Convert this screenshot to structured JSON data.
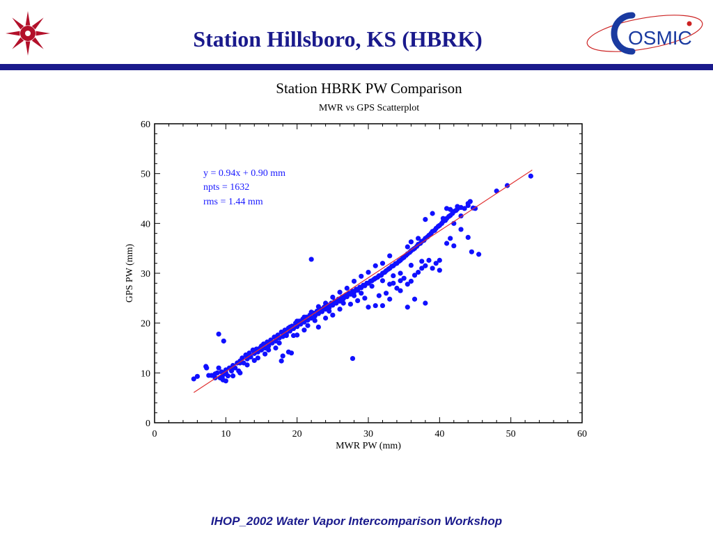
{
  "slide": {
    "title": "Station Hillsboro, KS (HBRK)",
    "footer": "IHOP_2002 Water Vapor Intercomparison Workshop",
    "colors": {
      "title": "#1a1a8c",
      "rule": "#1a1a8c"
    }
  },
  "logos": {
    "left": {
      "icon": "star-emblem-icon",
      "color": "#b3102a"
    },
    "right": {
      "icon": "cosmic-logo",
      "text": "OSMIC",
      "color": "#1a3aa0",
      "accent": "#cc2222"
    }
  },
  "chart_data": {
    "type": "scatter",
    "title": "Station HBRK PW Comparison",
    "subtitle": "MWR  vs GPS Scatterplot",
    "xlabel": "MWR PW (mm)",
    "ylabel": "GPS PW (mm)",
    "xlim": [
      0,
      60
    ],
    "ylim": [
      0,
      60
    ],
    "xticks": [
      0,
      10,
      20,
      30,
      40,
      50,
      60
    ],
    "yticks": [
      0,
      10,
      20,
      30,
      40,
      50,
      60
    ],
    "grid": false,
    "point_color": "#1010ff",
    "fit_color": "#e03030",
    "annotations": [
      "y = 0.94x  + 0.90 mm",
      "npts = 1632",
      "rms = 1.44 mm"
    ],
    "fit": {
      "slope": 0.94,
      "intercept": 0.9,
      "x_range": [
        5.5,
        53
      ]
    },
    "series": [
      {
        "values": [
          [
            5.5,
            8.8
          ],
          [
            6.0,
            9.3
          ],
          [
            7.2,
            11.3
          ],
          [
            7.3,
            11.0
          ],
          [
            7.6,
            9.5
          ],
          [
            8.0,
            9.5
          ],
          [
            8.5,
            9.0
          ],
          [
            8.8,
            10.0
          ],
          [
            9.0,
            11.0
          ],
          [
            9.2,
            9.0
          ],
          [
            9.4,
            10.2
          ],
          [
            9.6,
            8.6
          ],
          [
            9.8,
            9.8
          ],
          [
            10.0,
            10.6
          ],
          [
            10.3,
            9.4
          ],
          [
            10.5,
            11.0
          ],
          [
            10.8,
            10.4
          ],
          [
            11.0,
            11.5
          ],
          [
            11.3,
            11.0
          ],
          [
            11.6,
            12.0
          ],
          [
            11.8,
            10.4
          ],
          [
            12.0,
            12.4
          ],
          [
            12.3,
            13.0
          ],
          [
            12.5,
            12.0
          ],
          [
            12.8,
            13.6
          ],
          [
            13.0,
            12.8
          ],
          [
            13.3,
            14.0
          ],
          [
            13.5,
            13.2
          ],
          [
            13.8,
            14.6
          ],
          [
            14.0,
            13.9
          ],
          [
            14.3,
            14.8
          ],
          [
            14.5,
            14.2
          ],
          [
            14.8,
            15.0
          ],
          [
            15.0,
            14.6
          ],
          [
            15.3,
            15.8
          ],
          [
            15.5,
            15.0
          ],
          [
            15.8,
            16.2
          ],
          [
            16.0,
            15.4
          ],
          [
            16.3,
            16.6
          ],
          [
            16.5,
            16.0
          ],
          [
            16.8,
            17.2
          ],
          [
            17.0,
            16.4
          ],
          [
            17.3,
            17.6
          ],
          [
            17.5,
            17.0
          ],
          [
            17.8,
            18.2
          ],
          [
            18.0,
            17.3
          ],
          [
            18.3,
            18.6
          ],
          [
            18.5,
            17.8
          ],
          [
            18.8,
            19.0
          ],
          [
            19.0,
            18.4
          ],
          [
            19.3,
            19.4
          ],
          [
            19.5,
            18.9
          ],
          [
            19.8,
            20.0
          ],
          [
            20.0,
            19.3
          ],
          [
            20.3,
            20.4
          ],
          [
            20.5,
            19.8
          ],
          [
            20.8,
            20.8
          ],
          [
            21.0,
            20.2
          ],
          [
            21.3,
            21.2
          ],
          [
            21.5,
            20.6
          ],
          [
            21.8,
            21.6
          ],
          [
            22.0,
            21.0
          ],
          [
            22.3,
            22.0
          ],
          [
            22.5,
            21.4
          ],
          [
            22.8,
            22.4
          ],
          [
            23.0,
            21.9
          ],
          [
            23.3,
            22.8
          ],
          [
            23.5,
            22.3
          ],
          [
            23.8,
            23.2
          ],
          [
            24.0,
            22.8
          ],
          [
            24.3,
            23.6
          ],
          [
            24.5,
            23.1
          ],
          [
            24.8,
            24.0
          ],
          [
            25.0,
            23.6
          ],
          [
            25.3,
            24.4
          ],
          [
            25.5,
            24.0
          ],
          [
            25.8,
            24.8
          ],
          [
            26.0,
            24.4
          ],
          [
            26.3,
            25.2
          ],
          [
            26.5,
            24.9
          ],
          [
            26.8,
            25.6
          ],
          [
            27.0,
            25.3
          ],
          [
            27.3,
            26.0
          ],
          [
            27.5,
            25.8
          ],
          [
            27.8,
            26.4
          ],
          [
            28.0,
            26.2
          ],
          [
            28.3,
            26.8
          ],
          [
            28.5,
            26.6
          ],
          [
            28.8,
            27.2
          ],
          [
            29.0,
            27.1
          ],
          [
            29.3,
            27.6
          ],
          [
            29.5,
            27.5
          ],
          [
            29.8,
            28.0
          ],
          [
            30.0,
            28.0
          ],
          [
            30.3,
            28.4
          ],
          [
            30.5,
            28.5
          ],
          [
            30.8,
            28.8
          ],
          [
            31.0,
            29.0
          ],
          [
            31.3,
            29.2
          ],
          [
            31.5,
            29.5
          ],
          [
            31.8,
            29.6
          ],
          [
            32.0,
            30.0
          ],
          [
            32.3,
            30.2
          ],
          [
            32.5,
            30.5
          ],
          [
            32.8,
            30.8
          ],
          [
            33.0,
            31.0
          ],
          [
            33.3,
            31.4
          ],
          [
            33.5,
            31.5
          ],
          [
            33.8,
            31.9
          ],
          [
            34.0,
            32.0
          ],
          [
            34.3,
            32.4
          ],
          [
            34.5,
            32.6
          ],
          [
            34.8,
            33.0
          ],
          [
            35.0,
            33.2
          ],
          [
            35.3,
            33.6
          ],
          [
            35.5,
            33.9
          ],
          [
            35.8,
            34.2
          ],
          [
            36.0,
            34.5
          ],
          [
            36.3,
            34.8
          ],
          [
            36.5,
            35.0
          ],
          [
            36.8,
            35.4
          ],
          [
            37.0,
            35.8
          ],
          [
            37.3,
            36.0
          ],
          [
            37.5,
            36.4
          ],
          [
            37.8,
            36.6
          ],
          [
            38.0,
            37.0
          ],
          [
            38.3,
            37.3
          ],
          [
            38.5,
            37.6
          ],
          [
            38.8,
            38.0
          ],
          [
            39.0,
            38.4
          ],
          [
            39.3,
            38.6
          ],
          [
            39.5,
            39.0
          ],
          [
            39.8,
            39.4
          ],
          [
            40.0,
            39.6
          ],
          [
            40.3,
            40.0
          ],
          [
            40.5,
            40.4
          ],
          [
            40.8,
            40.6
          ],
          [
            41.0,
            41.0
          ],
          [
            41.3,
            41.4
          ],
          [
            41.5,
            41.6
          ],
          [
            41.8,
            42.0
          ],
          [
            42.0,
            42.4
          ],
          [
            42.3,
            42.6
          ],
          [
            42.5,
            42.9
          ],
          [
            43.0,
            43.2
          ],
          [
            43.5,
            43.0
          ],
          [
            44.0,
            43.6
          ],
          [
            44.3,
            44.4
          ],
          [
            44.7,
            43.1
          ],
          [
            45.0,
            43.0
          ],
          [
            38.0,
            40.8
          ],
          [
            39.0,
            42.0
          ],
          [
            40.5,
            41.0
          ],
          [
            41.5,
            42.8
          ],
          [
            42.0,
            40.0
          ],
          [
            43.0,
            41.5
          ],
          [
            36.0,
            36.3
          ],
          [
            37.0,
            37.0
          ],
          [
            35.5,
            35.3
          ],
          [
            33.0,
            33.5
          ],
          [
            32.0,
            32.0
          ],
          [
            31.0,
            31.5
          ],
          [
            30.0,
            30.2
          ],
          [
            29.0,
            29.4
          ],
          [
            28.0,
            28.4
          ],
          [
            27.0,
            27.0
          ],
          [
            26.0,
            26.2
          ],
          [
            25.0,
            25.2
          ],
          [
            24.0,
            24.0
          ],
          [
            23.0,
            23.3
          ],
          [
            22.0,
            22.2
          ],
          [
            21.0,
            21.2
          ],
          [
            20.0,
            20.4
          ],
          [
            19.0,
            19.2
          ],
          [
            18.0,
            18.0
          ],
          [
            17.0,
            17.2
          ],
          [
            16.0,
            16.0
          ],
          [
            15.0,
            15.4
          ],
          [
            14.0,
            14.4
          ],
          [
            13.0,
            13.2
          ],
          [
            12.0,
            12.0
          ],
          [
            11.0,
            11.0
          ],
          [
            10.0,
            10.0
          ],
          [
            9.5,
            9.2
          ],
          [
            33.0,
            27.8
          ],
          [
            33.5,
            28.0
          ],
          [
            34.0,
            27.0
          ],
          [
            34.5,
            28.5
          ],
          [
            35.0,
            29.0
          ],
          [
            35.5,
            27.8
          ],
          [
            36.0,
            28.4
          ],
          [
            36.5,
            29.6
          ],
          [
            37.0,
            30.2
          ],
          [
            37.5,
            31.0
          ],
          [
            38.0,
            31.5
          ],
          [
            38.5,
            32.6
          ],
          [
            39.0,
            31.0
          ],
          [
            39.5,
            32.0
          ],
          [
            40.0,
            30.6
          ],
          [
            40.0,
            32.6
          ],
          [
            41.0,
            36.0
          ],
          [
            41.5,
            37.0
          ],
          [
            42.0,
            35.5
          ],
          [
            43.0,
            38.8
          ],
          [
            44.0,
            37.2
          ],
          [
            44.5,
            34.3
          ],
          [
            45.5,
            33.8
          ],
          [
            31.5,
            25.5
          ],
          [
            32.5,
            26.0
          ],
          [
            33.0,
            24.8
          ],
          [
            34.5,
            26.5
          ],
          [
            35.5,
            23.2
          ],
          [
            36.5,
            24.8
          ],
          [
            38.0,
            24.0
          ],
          [
            30.0,
            23.2
          ],
          [
            31.0,
            23.5
          ],
          [
            32.0,
            23.5
          ],
          [
            27.8,
            12.9
          ],
          [
            22.0,
            32.8
          ],
          [
            27.5,
            23.8
          ],
          [
            28.5,
            24.5
          ],
          [
            29.5,
            25.0
          ],
          [
            26.0,
            22.8
          ],
          [
            25.0,
            21.6
          ],
          [
            24.0,
            21.0
          ],
          [
            23.0,
            19.2
          ],
          [
            21.0,
            18.6
          ],
          [
            20.0,
            17.6
          ],
          [
            18.5,
            17.5
          ],
          [
            17.0,
            15.0
          ],
          [
            15.5,
            13.8
          ],
          [
            14.0,
            12.5
          ],
          [
            18.0,
            13.4
          ],
          [
            18.8,
            14.2
          ],
          [
            19.2,
            14.0
          ],
          [
            17.8,
            12.4
          ],
          [
            9.0,
            17.8
          ],
          [
            9.7,
            16.4
          ],
          [
            8.5,
            9.8
          ],
          [
            10.0,
            8.4
          ],
          [
            11.0,
            9.4
          ],
          [
            12.0,
            10.0
          ],
          [
            13.0,
            11.6
          ],
          [
            14.5,
            13.0
          ],
          [
            16.0,
            14.6
          ],
          [
            17.5,
            16.0
          ],
          [
            19.5,
            17.5
          ],
          [
            21.5,
            19.5
          ],
          [
            22.5,
            20.5
          ],
          [
            24.5,
            22.4
          ],
          [
            26.5,
            24.0
          ],
          [
            28.0,
            25.5
          ],
          [
            29.0,
            26.0
          ],
          [
            30.5,
            27.4
          ],
          [
            32.0,
            28.5
          ],
          [
            33.5,
            29.5
          ],
          [
            34.5,
            30.0
          ],
          [
            36.0,
            31.6
          ],
          [
            37.5,
            32.4
          ],
          [
            44.0,
            44.0
          ],
          [
            48.0,
            46.5
          ],
          [
            49.5,
            47.6
          ],
          [
            52.8,
            49.5
          ],
          [
            41.0,
            43.0
          ],
          [
            42.5,
            43.4
          ]
        ]
      }
    ]
  }
}
